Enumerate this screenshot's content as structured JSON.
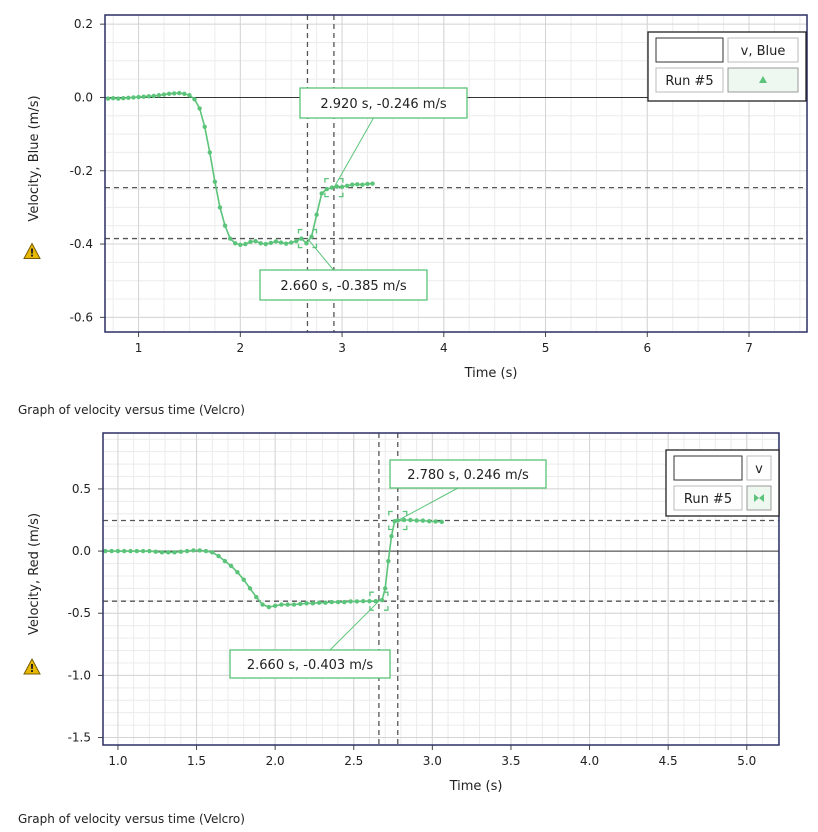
{
  "colors": {
    "series": "#5cc47a",
    "series_dark": "#3ea85e",
    "frame": "#2b2f66",
    "grid_major": "#d4d4d4",
    "grid_minor": "#ececec",
    "dashed": "#555555",
    "warning": "#e6b800"
  },
  "icons": {
    "warning": "warning-triangle-icon",
    "up_marker": "triangle-up-icon",
    "bowtie_marker": "bowtie-icon"
  },
  "charts": [
    {
      "caption": "Graph of velocity versus time (Velcro)",
      "chart_data": {
        "type": "scatter",
        "xlabel": "Time (s)",
        "ylabel": "Velocity, Blue (m/s)",
        "xlim": [
          0.67,
          7.57
        ],
        "ylim": [
          -0.64,
          0.225
        ],
        "x_ticks": [
          1,
          2,
          3,
          4,
          5,
          6,
          7
        ],
        "x_tick_labels": [
          "1",
          "2",
          "3",
          "4",
          "5",
          "6",
          "7"
        ],
        "y_ticks": [
          0.2,
          0.0,
          -0.2,
          -0.4,
          -0.6
        ],
        "y_tick_labels": [
          "0.2",
          "0.0",
          "-0.2",
          "-0.4",
          "-0.6"
        ],
        "grid": true,
        "legend_position": "top-right",
        "legend": {
          "header": "v, Blue",
          "run": "Run #5"
        },
        "series": [
          {
            "name": "Run #5",
            "x": [
              0.7,
              0.75,
              0.8,
              0.85,
              0.9,
              0.95,
              1.0,
              1.05,
              1.1,
              1.15,
              1.2,
              1.25,
              1.3,
              1.35,
              1.4,
              1.45,
              1.5,
              1.55,
              1.6,
              1.65,
              1.7,
              1.75,
              1.8,
              1.85,
              1.9,
              1.95,
              2.0,
              2.05,
              2.1,
              2.15,
              2.2,
              2.25,
              2.3,
              2.35,
              2.4,
              2.45,
              2.5,
              2.55,
              2.6,
              2.65,
              2.7,
              2.75,
              2.8,
              2.85,
              2.9,
              2.95,
              3.0,
              3.05,
              3.1,
              3.15,
              3.2,
              3.25,
              3.3
            ],
            "y": [
              -0.003,
              -0.002,
              -0.003,
              -0.002,
              -0.001,
              0.0,
              0.001,
              0.002,
              0.003,
              0.004,
              0.006,
              0.008,
              0.01,
              0.011,
              0.012,
              0.01,
              0.006,
              -0.005,
              -0.03,
              -0.08,
              -0.15,
              -0.23,
              -0.3,
              -0.35,
              -0.385,
              -0.398,
              -0.402,
              -0.4,
              -0.394,
              -0.392,
              -0.398,
              -0.4,
              -0.397,
              -0.393,
              -0.396,
              -0.399,
              -0.396,
              -0.392,
              -0.385,
              -0.398,
              -0.38,
              -0.32,
              -0.262,
              -0.25,
              -0.246,
              -0.243,
              -0.244,
              -0.241,
              -0.238,
              -0.237,
              -0.238,
              -0.236,
              -0.235
            ]
          }
        ],
        "annotations": [
          {
            "text": "2.920 s, -0.246 m/s",
            "x": 2.92,
            "y": -0.246
          },
          {
            "text": "2.660 s, -0.385 m/s",
            "x": 2.66,
            "y": -0.385
          }
        ],
        "vlines": [
          2.66,
          2.92
        ],
        "hlines": [
          -0.246,
          -0.385
        ]
      }
    },
    {
      "caption": "Graph of velocity versus time (Velcro)",
      "chart_data": {
        "type": "scatter",
        "xlabel": "Time (s)",
        "ylabel": "Velocity, Red (m/s)",
        "xlim": [
          0.905,
          5.205
        ],
        "ylim": [
          -1.56,
          0.95
        ],
        "x_ticks": [
          1.0,
          1.5,
          2.0,
          2.5,
          3.0,
          3.5,
          4.0,
          4.5,
          5.0
        ],
        "x_tick_labels": [
          "1.0",
          "1.5",
          "2.0",
          "2.5",
          "3.0",
          "3.5",
          "4.0",
          "4.5",
          "5.0"
        ],
        "y_ticks": [
          0.5,
          0.0,
          -0.5,
          -1.0,
          -1.5
        ],
        "y_tick_labels": [
          "0.5",
          "0.0",
          "-0.5",
          "-1.0",
          "-1.5"
        ],
        "grid": true,
        "legend_position": "top-right",
        "legend": {
          "header": "v",
          "run": "Run #5"
        },
        "series": [
          {
            "name": "Run #5",
            "x": [
              0.92,
              0.96,
              1.0,
              1.04,
              1.08,
              1.12,
              1.16,
              1.2,
              1.24,
              1.28,
              1.32,
              1.36,
              1.4,
              1.44,
              1.48,
              1.52,
              1.56,
              1.6,
              1.64,
              1.68,
              1.72,
              1.76,
              1.8,
              1.84,
              1.88,
              1.92,
              1.96,
              2.0,
              2.04,
              2.08,
              2.12,
              2.16,
              2.2,
              2.24,
              2.28,
              2.32,
              2.36,
              2.4,
              2.44,
              2.48,
              2.52,
              2.56,
              2.6,
              2.64,
              2.68,
              2.7,
              2.72,
              2.74,
              2.76,
              2.78,
              2.82,
              2.86,
              2.9,
              2.94,
              2.98,
              3.02,
              3.06
            ],
            "y": [
              0.0,
              0.0,
              0.0,
              0.0,
              0.0,
              0.0,
              0.0,
              0.0,
              -0.005,
              -0.01,
              -0.01,
              -0.01,
              -0.005,
              0.0,
              0.005,
              0.005,
              0.0,
              -0.01,
              -0.04,
              -0.08,
              -0.12,
              -0.17,
              -0.23,
              -0.3,
              -0.37,
              -0.43,
              -0.45,
              -0.44,
              -0.43,
              -0.43,
              -0.43,
              -0.425,
              -0.42,
              -0.42,
              -0.415,
              -0.415,
              -0.41,
              -0.41,
              -0.41,
              -0.405,
              -0.405,
              -0.403,
              -0.403,
              -0.403,
              -0.395,
              -0.3,
              -0.08,
              0.12,
              0.24,
              0.246,
              0.25,
              0.25,
              0.246,
              0.245,
              0.24,
              0.238,
              0.235
            ]
          }
        ],
        "annotations": [
          {
            "text": "2.780 s, 0.246 m/s",
            "x": 2.78,
            "y": 0.246
          },
          {
            "text": "2.660 s, -0.403 m/s",
            "x": 2.66,
            "y": -0.403
          }
        ],
        "vlines": [
          2.66,
          2.78
        ],
        "hlines": [
          0.246,
          -0.403
        ]
      }
    }
  ]
}
